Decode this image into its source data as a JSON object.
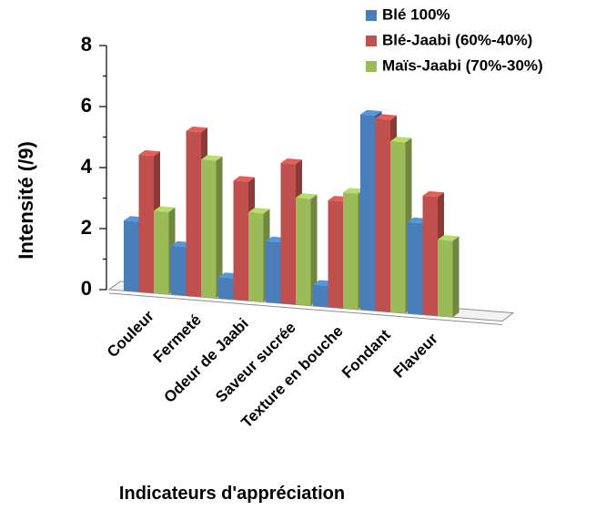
{
  "chart_data": {
    "type": "bar",
    "title": "",
    "xlabel": "Indicateurs d'appréciation",
    "ylabel": "Intensité (/9)",
    "ylim": [
      0,
      8
    ],
    "yticks": [
      "0",
      "2",
      "4",
      "6",
      "8"
    ],
    "categories": [
      "Couleur",
      "Fermeté",
      "Odeur de Jaabi",
      "Saveur sucrée",
      "Texture en bouche",
      "Fondant",
      "Flaveur"
    ],
    "series": [
      {
        "name": "Blé 100%",
        "color": "#4a7ebb",
        "values": [
          2.3,
          1.6,
          0.7,
          2.0,
          0.7,
          6.4,
          3.0
        ]
      },
      {
        "name": "Blé-Jaabi (60%-40%)",
        "color": "#c0504d",
        "values": [
          4.5,
          5.4,
          3.9,
          4.6,
          3.5,
          6.3,
          3.9
        ]
      },
      {
        "name": "Maïs-Jaabi (70%-30%)",
        "color": "#9bbb59",
        "values": [
          2.7,
          4.5,
          2.9,
          3.5,
          3.8,
          5.6,
          2.5
        ]
      }
    ],
    "grid": false,
    "legend_position": "top-right"
  }
}
